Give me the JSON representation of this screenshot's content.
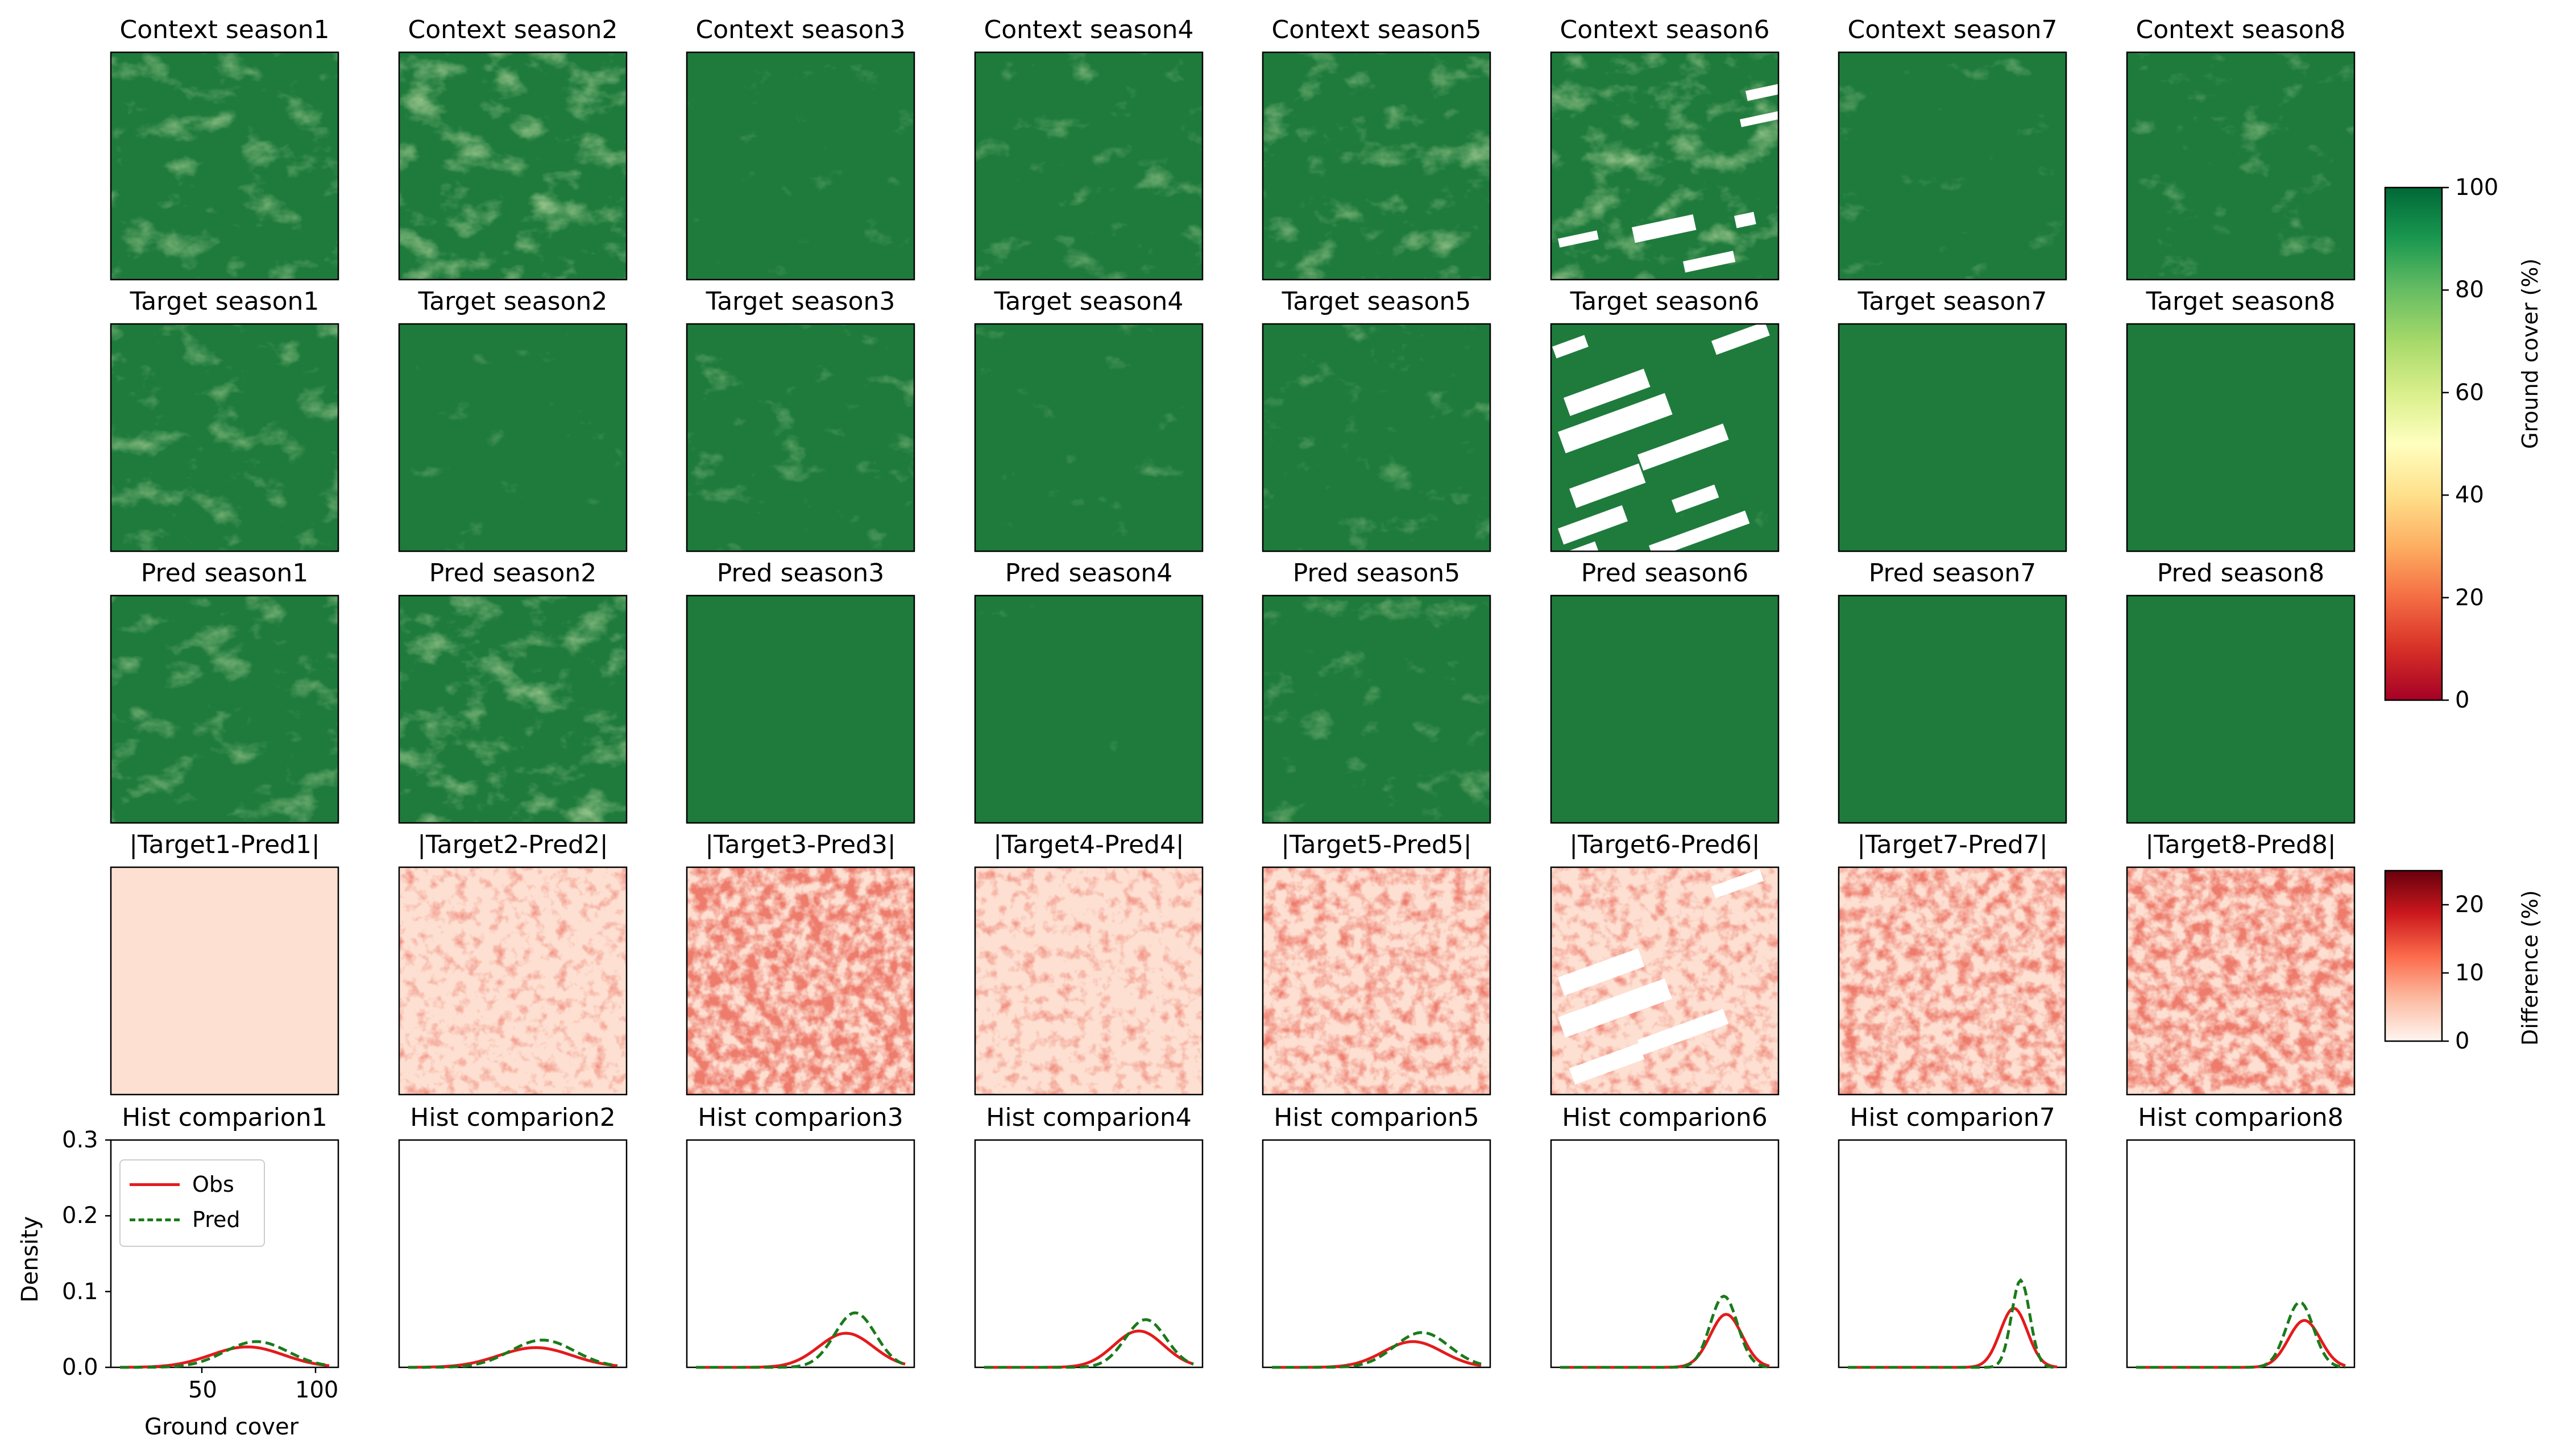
{
  "titles": {
    "context": [
      "Context season1",
      "Context season2",
      "Context season3",
      "Context season4",
      "Context season5",
      "Context season6",
      "Context season7",
      "Context season8"
    ],
    "target": [
      "Target season1",
      "Target season2",
      "Target season3",
      "Target season4",
      "Target season5",
      "Target season6",
      "Target season7",
      "Target season8"
    ],
    "pred": [
      "Pred season1",
      "Pred season2",
      "Pred season3",
      "Pred season4",
      "Pred season5",
      "Pred season6",
      "Pred season7",
      "Pred season8"
    ],
    "diff": [
      "|Target1-Pred1|",
      "|Target2-Pred2|",
      "|Target3-Pred3|",
      "|Target4-Pred4|",
      "|Target5-Pred5|",
      "|Target6-Pred6|",
      "|Target7-Pred7|",
      "|Target8-Pred8|"
    ],
    "hist": [
      "Hist comparion1",
      "Hist comparion2",
      "Hist comparion3",
      "Hist comparion4",
      "Hist comparion5",
      "Hist comparion6",
      "Hist comparion7",
      "Hist comparion8"
    ]
  },
  "colorbars": {
    "ground_cover": {
      "label": "Ground cover (%)",
      "ticks": [
        "0",
        "20",
        "40",
        "60",
        "80",
        "100"
      ],
      "range": [
        0,
        100
      ],
      "colormap": "RdYlGn"
    },
    "difference": {
      "label": "Difference (%)",
      "ticks": [
        "0",
        "10",
        "20"
      ],
      "range": [
        0,
        25
      ],
      "colormap": "Reds"
    }
  },
  "colors": {
    "obs": "#e41a1c",
    "pred": "#1a7a1a",
    "map_dark": "#1e7b3c",
    "map_light": "#d9ef8b",
    "diff_dark": "#b2182b",
    "diff_light": "#fde0d2"
  },
  "legend": {
    "obs": "Obs",
    "pred": "Pred"
  },
  "chart_data": {
    "type": "line",
    "xlabel": "Ground cover",
    "ylabel": "Density",
    "xlim": [
      10,
      110
    ],
    "ylim": [
      0,
      0.3
    ],
    "xticks": [
      "50",
      "100"
    ],
    "yticks": [
      "0.0",
      "0.1",
      "0.2",
      "0.3"
    ],
    "panels": [
      {
        "obs": {
          "mean": 70,
          "sd": 16,
          "peak": 0.027
        },
        "pred": {
          "mean": 74,
          "sd": 14,
          "peak": 0.034
        }
      },
      {
        "obs": {
          "mean": 70,
          "sd": 16,
          "peak": 0.026
        },
        "pred": {
          "mean": 73,
          "sd": 14,
          "peak": 0.036
        }
      },
      {
        "obs": {
          "mean": 80,
          "sd": 12,
          "peak": 0.045
        },
        "pred": {
          "mean": 84,
          "sd": 9,
          "peak": 0.072
        }
      },
      {
        "obs": {
          "mean": 82,
          "sd": 11,
          "peak": 0.048
        },
        "pred": {
          "mean": 85,
          "sd": 9,
          "peak": 0.063
        }
      },
      {
        "obs": {
          "mean": 76,
          "sd": 13,
          "peak": 0.034
        },
        "pred": {
          "mean": 80,
          "sd": 12,
          "peak": 0.046
        }
      },
      {
        "obs": {
          "mean": 87,
          "sd": 7,
          "peak": 0.07
        },
        "pred": {
          "mean": 86,
          "sd": 6,
          "peak": 0.094
        }
      },
      {
        "obs": {
          "mean": 87,
          "sd": 6,
          "peak": 0.078
        },
        "pred": {
          "mean": 90,
          "sd": 4,
          "peak": 0.115
        }
      },
      {
        "obs": {
          "mean": 88,
          "sd": 7,
          "peak": 0.062
        },
        "pred": {
          "mean": 86,
          "sd": 6,
          "peak": 0.086
        }
      }
    ]
  }
}
